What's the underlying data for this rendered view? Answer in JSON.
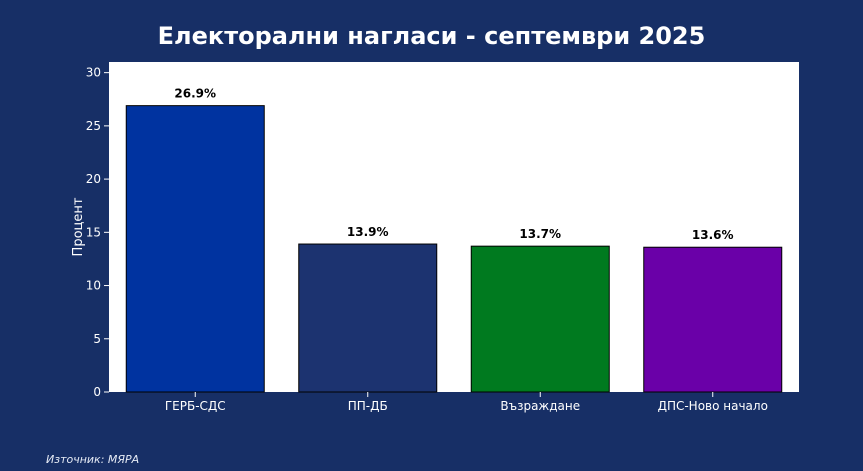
{
  "title": "Електорални нагласи - септември 2025",
  "source": "Източник: МЯРА",
  "chart_data": {
    "type": "bar",
    "title": "Електорални нагласи - септември 2025",
    "xlabel": "",
    "ylabel": "Процент",
    "ylim": [
      0,
      31
    ],
    "yticks": [
      0,
      5,
      10,
      15,
      20,
      25,
      30
    ],
    "categories": [
      "ГЕРБ-СДС",
      "ПП-ДБ",
      "Възраждане",
      "ДПС-Ново начало"
    ],
    "values": [
      26.9,
      13.9,
      13.7,
      13.6
    ],
    "value_labels": [
      "26.9%",
      "13.9%",
      "13.7%",
      "13.6%"
    ],
    "colors": [
      "#0033a0",
      "#1c3370",
      "#007a1f",
      "#6a00a8"
    ],
    "grid": false,
    "legend": "none"
  },
  "colors": {
    "background": "#172f66",
    "plot_background": "#ffffff",
    "text": "#ffffff",
    "bar_label": "#000000"
  }
}
